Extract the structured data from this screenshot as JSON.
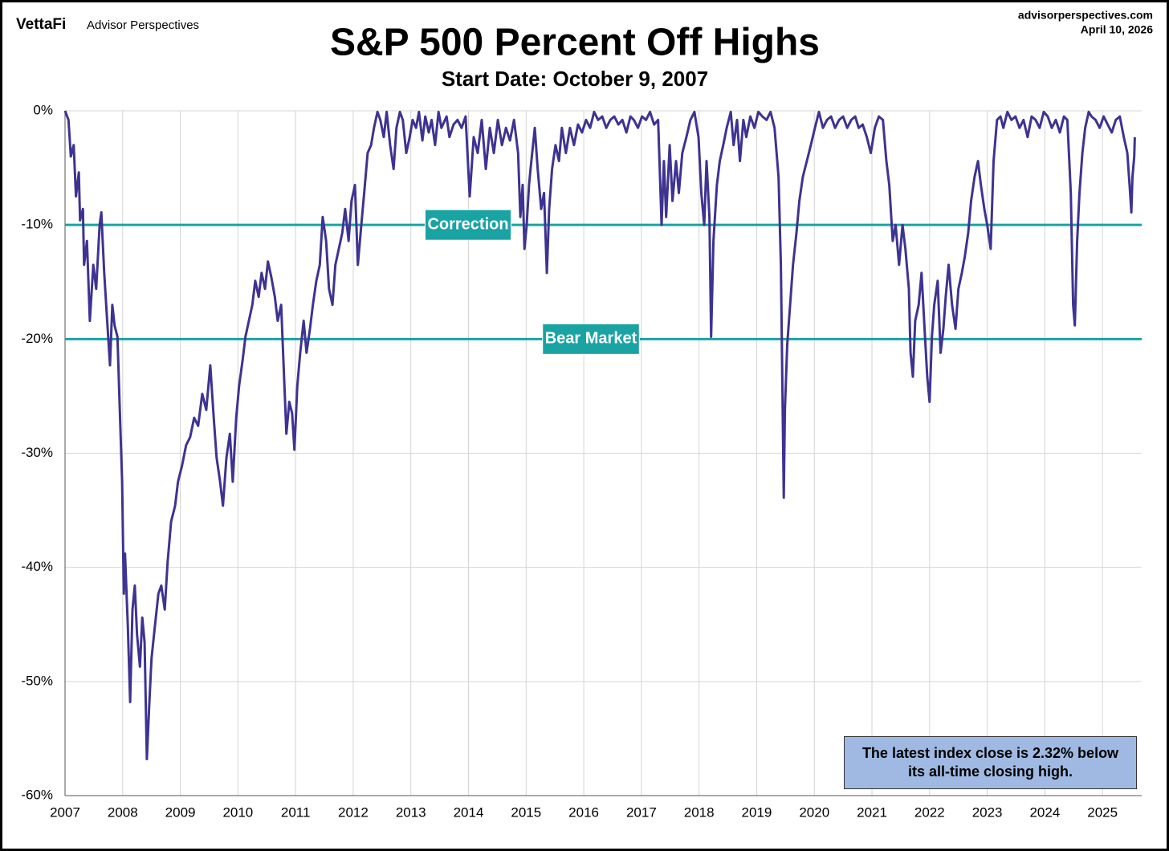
{
  "brand": "VettaFi",
  "brand_sub": "Advisor Perspectives",
  "site": "advisorperspectives.com",
  "date": "April 10, 2026",
  "chart_data": {
    "type": "line",
    "title": "S&P 500 Percent Off Highs",
    "subtitle": "Start Date: October 9, 2007",
    "color": "#3e3391",
    "grid": true,
    "xlim": [
      2007,
      2025.68
    ],
    "xticks": [
      2007,
      2008,
      2009,
      2010,
      2011,
      2012,
      2013,
      2014,
      2015,
      2016,
      2017,
      2018,
      2019,
      2020,
      2021,
      2022,
      2023,
      2024,
      2025
    ],
    "ylim": [
      -60,
      0
    ],
    "yticks": [
      {
        "value": 0,
        "label": "0%"
      },
      {
        "value": -10,
        "label": "-10%"
      },
      {
        "value": -20,
        "label": "-20%"
      },
      {
        "value": -30,
        "label": "-30%"
      },
      {
        "value": -40,
        "label": "-40%"
      },
      {
        "value": -50,
        "label": "-50%"
      },
      {
        "value": -60,
        "label": "-60%"
      }
    ],
    "reference_lines": [
      {
        "value": -10,
        "label": "Correction",
        "color": "#1aa3a3"
      },
      {
        "value": -20,
        "label": "Bear Market",
        "color": "#1aa3a3"
      }
    ],
    "annotation": "The latest index close is 2.32% below its all-time closing high.",
    "x": [
      2007.0,
      2007.06,
      2007.1,
      2007.15,
      2007.19,
      2007.24,
      2007.26,
      2007.31,
      2007.33,
      2007.38,
      2007.43,
      2007.49,
      2007.54,
      2007.6,
      2007.63,
      2007.68,
      2007.74,
      2007.78,
      2007.82,
      2007.86,
      2007.91,
      2007.95,
      2007.99,
      2008.02,
      2008.04,
      2008.09,
      2008.13,
      2008.17,
      2008.21,
      2008.25,
      2008.3,
      2008.34,
      2008.38,
      2008.42,
      2008.46,
      2008.5,
      2008.56,
      2008.62,
      2008.67,
      2008.73,
      2008.78,
      2008.84,
      2008.91,
      2008.96,
      2009.03,
      2009.1,
      2009.17,
      2009.24,
      2009.31,
      2009.38,
      2009.45,
      2009.52,
      2009.58,
      2009.63,
      2009.69,
      2009.74,
      2009.8,
      2009.86,
      2009.91,
      2009.97,
      2010.02,
      2010.08,
      2010.13,
      2010.19,
      2010.25,
      2010.3,
      2010.36,
      2010.41,
      2010.47,
      2010.52,
      2010.58,
      2010.64,
      2010.69,
      2010.75,
      2010.8,
      2010.84,
      2010.89,
      2010.94,
      2010.98,
      2011.03,
      2011.08,
      2011.14,
      2011.19,
      2011.25,
      2011.3,
      2011.36,
      2011.42,
      2011.47,
      2011.53,
      2011.58,
      2011.64,
      2011.69,
      2011.75,
      2011.81,
      2011.86,
      2011.92,
      2011.97,
      2012.03,
      2012.08,
      2012.14,
      2012.19,
      2012.25,
      2012.31,
      2012.36,
      2012.42,
      2012.47,
      2012.53,
      2012.58,
      2012.64,
      2012.7,
      2012.75,
      2012.81,
      2012.86,
      2012.92,
      2012.98,
      2013.03,
      2013.09,
      2013.14,
      2013.2,
      2013.25,
      2013.31,
      2013.36,
      2013.42,
      2013.48,
      2013.53,
      2013.62,
      2013.67,
      2013.74,
      2013.81,
      2013.88,
      2013.95,
      2014.02,
      2014.09,
      2014.16,
      2014.23,
      2014.3,
      2014.37,
      2014.44,
      2014.51,
      2014.58,
      2014.65,
      2014.72,
      2014.79,
      2014.86,
      2014.9,
      2014.94,
      2014.97,
      2015.01,
      2015.05,
      2015.09,
      2015.15,
      2015.2,
      2015.26,
      2015.31,
      2015.36,
      2015.4,
      2015.45,
      2015.51,
      2015.57,
      2015.62,
      2015.69,
      2015.76,
      2015.83,
      2015.9,
      2015.97,
      2016.04,
      2016.11,
      2016.18,
      2016.25,
      2016.32,
      2016.39,
      2016.46,
      2016.53,
      2016.6,
      2016.67,
      2016.74,
      2016.81,
      2016.87,
      2016.94,
      2017.01,
      2017.08,
      2017.15,
      2017.22,
      2017.29,
      2017.35,
      2017.39,
      2017.43,
      2017.49,
      2017.54,
      2017.6,
      2017.65,
      2017.71,
      2017.78,
      2017.85,
      2017.92,
      2017.99,
      2018.04,
      2018.09,
      2018.13,
      2018.18,
      2018.21,
      2018.25,
      2018.31,
      2018.36,
      2018.42,
      2018.48,
      2018.55,
      2018.6,
      2018.66,
      2018.71,
      2018.77,
      2018.82,
      2018.89,
      2018.96,
      2019.03,
      2019.1,
      2019.17,
      2019.24,
      2019.31,
      2019.38,
      2019.42,
      2019.47,
      2019.49,
      2019.53,
      2019.58,
      2019.63,
      2019.69,
      2019.74,
      2019.8,
      2019.87,
      2019.94,
      2020.01,
      2020.08,
      2020.15,
      2020.22,
      2020.29,
      2020.36,
      2020.43,
      2020.5,
      2020.57,
      2020.64,
      2020.71,
      2020.77,
      2020.84,
      2020.91,
      2020.98,
      2021.05,
      2021.12,
      2021.19,
      2021.25,
      2021.3,
      2021.36,
      2021.41,
      2021.47,
      2021.53,
      2021.58,
      2021.64,
      2021.67,
      2021.71,
      2021.75,
      2021.81,
      2021.86,
      2021.92,
      2021.96,
      2022.0,
      2022.04,
      2022.08,
      2022.14,
      2022.19,
      2022.24,
      2022.28,
      2022.33,
      2022.39,
      2022.45,
      2022.5,
      2022.56,
      2022.61,
      2022.67,
      2022.72,
      2022.78,
      2022.84,
      2022.89,
      2022.95,
      2023.0,
      2023.06,
      2023.11,
      2023.17,
      2023.23,
      2023.28,
      2023.35,
      2023.42,
      2023.49,
      2023.56,
      2023.63,
      2023.7,
      2023.77,
      2023.84,
      2023.91,
      2023.98,
      2024.05,
      2024.12,
      2024.19,
      2024.26,
      2024.33,
      2024.39,
      2024.45,
      2024.49,
      2024.52,
      2024.56,
      2024.6,
      2024.65,
      2024.7,
      2024.76,
      2024.81,
      2024.88,
      2024.95,
      2025.02,
      2025.09,
      2025.16,
      2025.23,
      2025.3,
      2025.37,
      2025.43,
      2025.47,
      2025.5,
      2025.52,
      2025.55,
      2025.56
    ],
    "values": [
      0,
      -0.8,
      -4.0,
      -3.0,
      -7.5,
      -5.4,
      -9.6,
      -8.6,
      -13.5,
      -11.4,
      -18.4,
      -13.5,
      -15.6,
      -10.0,
      -8.9,
      -14.2,
      -19.1,
      -22.3,
      -17.0,
      -18.8,
      -19.8,
      -26.2,
      -32.5,
      -42.3,
      -38.8,
      -45.1,
      -51.8,
      -43.7,
      -41.6,
      -45.9,
      -48.7,
      -44.4,
      -46.6,
      -56.8,
      -52.2,
      -48.0,
      -45.1,
      -42.3,
      -41.6,
      -43.7,
      -39.5,
      -36.0,
      -34.6,
      -32.5,
      -31.1,
      -29.3,
      -28.6,
      -26.9,
      -27.6,
      -24.8,
      -26.2,
      -22.3,
      -26.9,
      -30.4,
      -32.5,
      -34.6,
      -30.4,
      -28.3,
      -32.5,
      -26.9,
      -24.1,
      -21.9,
      -19.8,
      -18.4,
      -17.0,
      -14.9,
      -16.3,
      -14.2,
      -15.6,
      -13.2,
      -14.6,
      -16.3,
      -18.4,
      -17.0,
      -23.3,
      -28.3,
      -25.5,
      -26.5,
      -29.7,
      -24.1,
      -21.2,
      -18.4,
      -21.2,
      -19.1,
      -17.0,
      -14.9,
      -13.5,
      -9.3,
      -11.4,
      -15.6,
      -17.0,
      -13.5,
      -12.1,
      -10.7,
      -8.6,
      -11.4,
      -7.9,
      -6.5,
      -13.5,
      -10.0,
      -7.2,
      -3.7,
      -3.0,
      -1.5,
      -0.1,
      -0.8,
      -2.3,
      -0.1,
      -3.0,
      -5.1,
      -1.5,
      -0.1,
      -0.8,
      -3.7,
      -2.3,
      -0.8,
      -1.5,
      -0.1,
      -2.6,
      -0.5,
      -1.9,
      -0.8,
      -3.0,
      -0.1,
      -1.5,
      -0.5,
      -2.3,
      -1.2,
      -0.8,
      -1.5,
      -0.5,
      -7.5,
      -2.3,
      -3.7,
      -0.8,
      -5.1,
      -1.5,
      -3.7,
      -0.8,
      -3.0,
      -1.5,
      -2.6,
      -0.8,
      -3.7,
      -9.3,
      -6.5,
      -12.1,
      -10.0,
      -6.5,
      -4.4,
      -1.5,
      -5.1,
      -8.6,
      -7.2,
      -14.2,
      -8.6,
      -5.1,
      -3.0,
      -4.4,
      -1.5,
      -3.7,
      -1.5,
      -3.0,
      -1.2,
      -1.9,
      -0.8,
      -1.5,
      -0.1,
      -0.8,
      -0.5,
      -1.5,
      -0.8,
      -0.5,
      -1.2,
      -0.8,
      -1.9,
      -0.5,
      -0.8,
      -1.5,
      -0.5,
      -0.8,
      -0.1,
      -1.2,
      -0.8,
      -10.0,
      -4.4,
      -9.3,
      -3.0,
      -7.9,
      -4.4,
      -7.2,
      -3.7,
      -2.3,
      -0.8,
      -0.1,
      -2.3,
      -7.2,
      -10.0,
      -4.4,
      -9.3,
      -19.8,
      -11.4,
      -6.5,
      -4.4,
      -3.0,
      -1.5,
      -0.1,
      -3.0,
      -0.8,
      -4.4,
      -0.8,
      -2.3,
      -0.5,
      -1.5,
      -0.1,
      -0.5,
      -0.8,
      -0.1,
      -1.5,
      -5.8,
      -13.5,
      -33.9,
      -26.2,
      -20.5,
      -17.0,
      -13.5,
      -10.7,
      -7.9,
      -5.8,
      -4.4,
      -3.0,
      -1.5,
      -0.1,
      -1.5,
      -0.8,
      -0.5,
      -1.5,
      -0.8,
      -0.5,
      -1.5,
      -0.8,
      -0.5,
      -1.5,
      -1.2,
      -2.3,
      -3.7,
      -1.5,
      -0.5,
      -0.8,
      -4.4,
      -6.5,
      -11.4,
      -10.0,
      -13.5,
      -10.0,
      -12.1,
      -15.6,
      -21.2,
      -23.3,
      -18.4,
      -17.0,
      -14.2,
      -19.8,
      -23.3,
      -25.5,
      -19.8,
      -17.0,
      -14.9,
      -21.2,
      -19.1,
      -16.3,
      -13.5,
      -17.0,
      -19.1,
      -15.6,
      -14.2,
      -12.8,
      -10.7,
      -7.9,
      -5.8,
      -4.4,
      -6.5,
      -8.6,
      -10.0,
      -12.1,
      -4.4,
      -0.8,
      -0.5,
      -1.5,
      -0.1,
      -0.8,
      -0.5,
      -1.5,
      -0.8,
      -2.3,
      -0.5,
      -0.8,
      -1.5,
      -0.1,
      -0.5,
      -1.5,
      -0.8,
      -1.9,
      -0.5,
      -0.8,
      -7.2,
      -17.0,
      -18.8,
      -11.4,
      -7.2,
      -3.7,
      -1.5,
      -0.1,
      -0.5,
      -0.8,
      -1.5,
      -0.5,
      -1.2,
      -1.9,
      -0.8,
      -0.5,
      -2.3,
      -3.7,
      -6.5,
      -8.9,
      -5.8,
      -4.0,
      -2.32
    ]
  }
}
